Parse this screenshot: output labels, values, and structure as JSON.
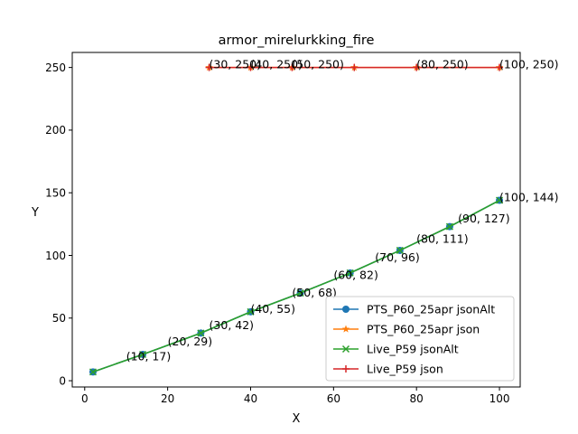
{
  "chart_data": {
    "type": "line",
    "title": "armor_mirelurkking_fire",
    "xlabel": "X",
    "ylabel": "Y",
    "xlim": [
      -3,
      105
    ],
    "ylim": [
      -5,
      262
    ],
    "xticks": [
      0,
      20,
      40,
      60,
      80,
      100
    ],
    "yticks": [
      0,
      50,
      100,
      150,
      200,
      250
    ],
    "grid": false,
    "legend_position": "lower-right",
    "series": [
      {
        "name": "PTS_P60_25apr jsonAlt",
        "color": "#1f77b4",
        "marker": "circle",
        "x": [
          2,
          14,
          28,
          40,
          52,
          64,
          76,
          88,
          100
        ],
        "y": [
          7,
          21,
          38,
          55,
          70,
          86,
          104,
          123,
          144
        ]
      },
      {
        "name": "PTS_P60_25apr json",
        "color": "#ff7f0e",
        "marker": "star",
        "x": [
          30,
          40,
          50,
          65,
          80,
          100
        ],
        "y": [
          250,
          250,
          250,
          250,
          250,
          250
        ]
      },
      {
        "name": "Live_P59 jsonAlt",
        "color": "#2ca02c",
        "marker": "x",
        "x": [
          2,
          14,
          28,
          40,
          52,
          64,
          76,
          88,
          100
        ],
        "y": [
          7,
          21,
          38,
          55,
          70,
          86,
          104,
          123,
          144
        ]
      },
      {
        "name": "Live_P59 json",
        "color": "#d62728",
        "marker": "plus",
        "x": [
          30,
          40,
          50,
          65,
          80,
          100
        ],
        "y": [
          250,
          250,
          250,
          250,
          250,
          250
        ]
      }
    ],
    "annotations": [
      {
        "text": "(10, 17)",
        "x": 10,
        "y": 17
      },
      {
        "text": "(20, 29)",
        "x": 20,
        "y": 29
      },
      {
        "text": "(30, 42)",
        "x": 30,
        "y": 42
      },
      {
        "text": "(40, 55)",
        "x": 40,
        "y": 55
      },
      {
        "text": "(50, 68)",
        "x": 50,
        "y": 68
      },
      {
        "text": "(60, 82)",
        "x": 60,
        "y": 82
      },
      {
        "text": "(70, 96)",
        "x": 70,
        "y": 96
      },
      {
        "text": "(80, 111)",
        "x": 80,
        "y": 111
      },
      {
        "text": "(90, 127)",
        "x": 90,
        "y": 127
      },
      {
        "text": "(100, 144)",
        "x": 100,
        "y": 144
      },
      {
        "text": "(30, 250)",
        "x": 30,
        "y": 250
      },
      {
        "text": "(40, 250)",
        "x": 40,
        "y": 250
      },
      {
        "text": "(50, 250)",
        "x": 50,
        "y": 250
      },
      {
        "text": "(80, 250)",
        "x": 80,
        "y": 250
      },
      {
        "text": "(100, 250)",
        "x": 100,
        "y": 250
      }
    ]
  }
}
